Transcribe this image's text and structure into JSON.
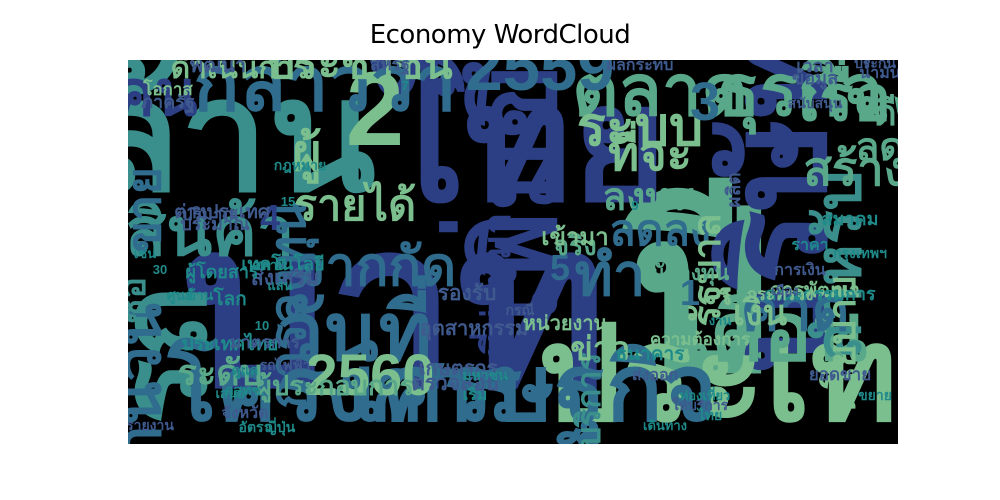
{
  "chart_data": {
    "type": "wordcloud",
    "title": "Economy WordCloud",
    "background": "#000000",
    "colormap": [
      "#2c3e84",
      "#2f6c8e",
      "#3a8f8c",
      "#5aa88a",
      "#7bbf8e",
      "#3f5a8e",
      "#1f8a8a"
    ],
    "words": [
      {
        "text": "บาท",
        "weight": 1.0
      },
      {
        "text": "ปี",
        "weight": 0.98
      },
      {
        "text": "ไทย",
        "weight": 0.8
      },
      {
        "text": "ล้าน",
        "weight": 0.78
      },
      {
        "text": "บริษัท",
        "weight": 0.72
      },
      {
        "text": "ประเทศ",
        "weight": 0.7
      },
      {
        "text": "รถ",
        "weight": 0.66
      },
      {
        "text": "เพิ่มขึ้น",
        "weight": 0.62
      },
      {
        "text": "2",
        "weight": 0.6
      },
      {
        "text": "เศรษฐกิจ",
        "weight": 0.55
      },
      {
        "text": "โครงการ",
        "weight": 0.54
      },
      {
        "text": "วันที่",
        "weight": 0.5
      },
      {
        "text": "เดือน",
        "weight": 0.5
      },
      {
        "text": "กล่าวว่า",
        "weight": 0.48
      },
      {
        "text": "ธุรกิจ",
        "weight": 0.46
      },
      {
        "text": "ตลาด",
        "weight": 0.46
      },
      {
        "text": "2559",
        "weight": 0.44
      },
      {
        "text": "สินค้า",
        "weight": 0.44
      },
      {
        "text": "คน",
        "weight": 0.42
      },
      {
        "text": "เรื่อง",
        "weight": 0.42
      },
      {
        "text": "สำหรับ",
        "weight": 0.42
      },
      {
        "text": "จำนวน",
        "weight": 0.42
      },
      {
        "text": "2560",
        "weight": 0.4
      },
      {
        "text": "ทำ",
        "weight": 0.4
      },
      {
        "text": "คาด",
        "weight": 0.4
      },
      {
        "text": "จากกัด",
        "weight": 0.38
      },
      {
        "text": "ระบบ",
        "weight": 0.38
      },
      {
        "text": "3",
        "weight": 0.38
      },
      {
        "text": "ผู้",
        "weight": 0.36
      },
      {
        "text": "การลงทุน",
        "weight": 0.36
      },
      {
        "text": "ที่จะ",
        "weight": 0.34
      },
      {
        "text": "ขาย",
        "weight": 0.34
      },
      {
        "text": "สร้าง",
        "weight": 0.34
      },
      {
        "text": "ประชาชน",
        "weight": 0.32
      },
      {
        "text": "รายได้",
        "weight": 0.32
      },
      {
        "text": "ลดลง",
        "weight": 0.32
      },
      {
        "text": "ลงทุน",
        "weight": 0.3
      },
      {
        "text": "รัฐบาล",
        "weight": 0.3
      },
      {
        "text": "ที่ผ่านมา",
        "weight": 0.3
      },
      {
        "text": "นโยบาย",
        "weight": 0.3
      },
      {
        "text": "ลด",
        "weight": 0.3
      },
      {
        "text": "ดี",
        "weight": 0.28
      },
      {
        "text": "1",
        "weight": 0.28
      },
      {
        "text": "4",
        "weight": 0.28
      },
      {
        "text": "5",
        "weight": 0.28
      },
      {
        "text": "ซื้อ",
        "weight": 0.28
      },
      {
        "text": "ระดับ",
        "weight": 0.28
      },
      {
        "text": "เงิน",
        "weight": 0.28
      },
      {
        "text": "บริการ",
        "weight": 0.26
      },
      {
        "text": "ข่าว",
        "weight": 0.26
      },
      {
        "text": "ดำเนินการ",
        "weight": 0.24
      },
      {
        "text": "ผู้ประกอบการ",
        "weight": 0.22
      },
      {
        "text": "จริง",
        "weight": 0.22
      },
      {
        "text": "เข้ามา",
        "weight": 0.2
      },
      {
        "text": "นักลงทุน",
        "weight": 0.18
      },
      {
        "text": "ส่งเสริม",
        "weight": 0.18
      },
      {
        "text": "รองรับ",
        "weight": 0.18
      },
      {
        "text": "ตรวจสอบ",
        "weight": 0.18
      },
      {
        "text": "เกษตรกร",
        "weight": 0.17
      },
      {
        "text": "อุตสาหกรรม",
        "weight": 0.17
      },
      {
        "text": "หน่วยงาน",
        "weight": 0.17
      },
      {
        "text": "พัฒนา",
        "weight": 0.17
      },
      {
        "text": "การพัฒนา",
        "weight": 0.17
      },
      {
        "text": "ผลิต",
        "weight": 0.16
      },
      {
        "text": "ประเทศไทย",
        "weight": 0.16
      },
      {
        "text": "ต่างประเทศ",
        "weight": 0.16
      },
      {
        "text": "ธนาคาร",
        "weight": 0.16
      },
      {
        "text": "โลก",
        "weight": 0.16
      },
      {
        "text": "ประมาณ",
        "weight": 0.15
      },
      {
        "text": "เวลา",
        "weight": 0.15
      },
      {
        "text": "ภาครัฐ",
        "weight": 0.15
      },
      {
        "text": "ข้อมูล",
        "weight": 0.15
      },
      {
        "text": "สมาคม",
        "weight": 0.15
      },
      {
        "text": "คณะกรรมการ",
        "weight": 0.15
      },
      {
        "text": "ผู้โดยสาร",
        "weight": 0.15
      },
      {
        "text": "เทคโนโลยี",
        "weight": 0.15
      },
      {
        "text": "ปริมาณ",
        "weight": 0.14
      },
      {
        "text": "ความต้องการ",
        "weight": 0.14
      },
      {
        "text": "มาตรการ",
        "weight": 0.14
      },
      {
        "text": "กระทรวง",
        "weight": 0.14
      },
      {
        "text": "สหรัฐ",
        "weight": 0.14
      },
      {
        "text": "โอกาส",
        "weight": 0.14
      },
      {
        "text": "ยอดขาย",
        "weight": 0.14
      },
      {
        "text": "การเงิน",
        "weight": 0.13
      },
      {
        "text": "จังหวัด",
        "weight": 0.13
      },
      {
        "text": "ส่งออก",
        "weight": 0.13
      },
      {
        "text": "ราคา",
        "weight": 0.13
      },
      {
        "text": "ผลกระทบ",
        "weight": 0.13
      },
      {
        "text": "เริ่ม",
        "weight": 0.13
      },
      {
        "text": "น้ำมัน",
        "weight": 0.13
      },
      {
        "text": "มหาชน",
        "weight": 0.12
      },
      {
        "text": "สนับสนุน",
        "weight": 0.12
      },
      {
        "text": "รถไฟฟ้า",
        "weight": 0.12
      },
      {
        "text": "กรุงเทพฯ",
        "weight": 0.12
      },
      {
        "text": "สถานี",
        "weight": 0.12
      },
      {
        "text": "กฎหมาย",
        "weight": 0.12
      },
      {
        "text": "ประกัน",
        "weight": 0.12
      },
      {
        "text": "อัตรา",
        "weight": 0.12
      },
      {
        "text": "รายงาน",
        "weight": 0.12
      },
      {
        "text": "ให้บริการ",
        "weight": 0.11
      },
      {
        "text": "ไทย",
        "weight": 0.11
      },
      {
        "text": "ญี่ปุ่น",
        "weight": 0.11
      },
      {
        "text": "กสทช.",
        "weight": 0.11
      },
      {
        "text": "กรณี",
        "weight": 0.11
      },
      {
        "text": "ดูแล",
        "weight": 0.11
      },
      {
        "text": "ศูนย์",
        "weight": 0.11
      },
      {
        "text": "บ้าน",
        "weight": 0.11
      },
      {
        "text": "ขยาย",
        "weight": 0.11
      },
      {
        "text": "เสนอ",
        "weight": 0.1
      },
      {
        "text": "งาน",
        "weight": 0.1
      },
      {
        "text": "เดินทาง",
        "weight": 0.1
      },
      {
        "text": "เมือง",
        "weight": 0.1
      },
      {
        "text": "ท่องเที่ยว",
        "weight": 0.1
      },
      {
        "text": "เช่น",
        "weight": 0.1
      },
      {
        "text": "แสน",
        "weight": 0.1
      },
      {
        "text": "30",
        "weight": 0.1
      },
      {
        "text": "15",
        "weight": 0.1
      },
      {
        "text": "10",
        "weight": 0.1
      },
      {
        "text": "7",
        "weight": 0.1
      },
      {
        "text": "9",
        "weight": 0.1
      }
    ]
  }
}
